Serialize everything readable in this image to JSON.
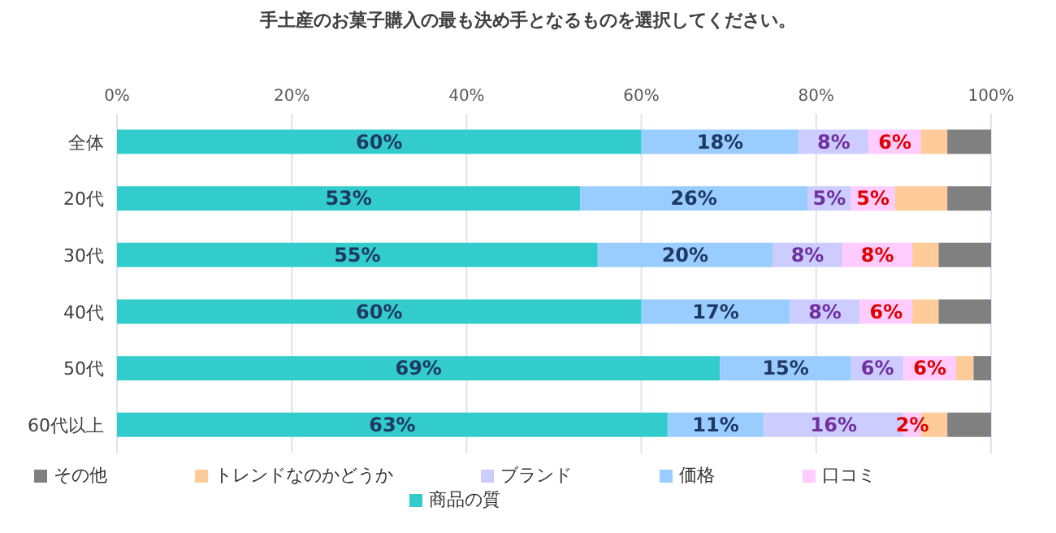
{
  "chart_data": {
    "type": "bar",
    "orientation": "horizontal",
    "stacked": true,
    "title": "手土産のお菓子購入の最も決め手となるものを選択してください。",
    "categories": [
      "全体",
      "20代",
      "30代",
      "40代",
      "50代",
      "60代以上"
    ],
    "series": [
      {
        "name": "商品の質",
        "color": "#33cccc",
        "values": [
          60,
          53,
          55,
          60,
          69,
          63
        ],
        "value_labels": [
          "60%",
          "53%",
          "55%",
          "60%",
          "69%",
          "63%"
        ]
      },
      {
        "name": "価格",
        "color": "#99ccff",
        "values": [
          18,
          26,
          20,
          17,
          15,
          11
        ],
        "value_labels": [
          "18%",
          "26%",
          "20%",
          "17%",
          "15%",
          "11%"
        ]
      },
      {
        "name": "ブランド",
        "color": "#ccccff",
        "values": [
          8,
          5,
          8,
          8,
          6,
          16
        ],
        "value_labels": [
          "8%",
          "5%",
          "8%",
          "8%",
          "6%",
          "16%"
        ]
      },
      {
        "name": "口コミ",
        "color": "#ffccff",
        "values": [
          6,
          5,
          8,
          6,
          6,
          2
        ],
        "value_labels": [
          "6%",
          "5%",
          "8%",
          "6%",
          "6%",
          "2%"
        ]
      },
      {
        "name": "トレンドなのかどうか",
        "color": "#ffcc99",
        "values": [
          3,
          6,
          3,
          3,
          2,
          3
        ]
      },
      {
        "name": "その他",
        "color": "#808080",
        "values": [
          5,
          5,
          6,
          6,
          2,
          5
        ]
      }
    ],
    "xlim": [
      0,
      100
    ],
    "xticks": [
      {
        "value": 0,
        "label": "0%"
      },
      {
        "value": 20,
        "label": "20%"
      },
      {
        "value": 40,
        "label": "40%"
      },
      {
        "value": 60,
        "label": "60%"
      },
      {
        "value": 80,
        "label": "80%"
      },
      {
        "value": 100,
        "label": "100%"
      }
    ],
    "grid": "x",
    "legend": "bottom"
  }
}
